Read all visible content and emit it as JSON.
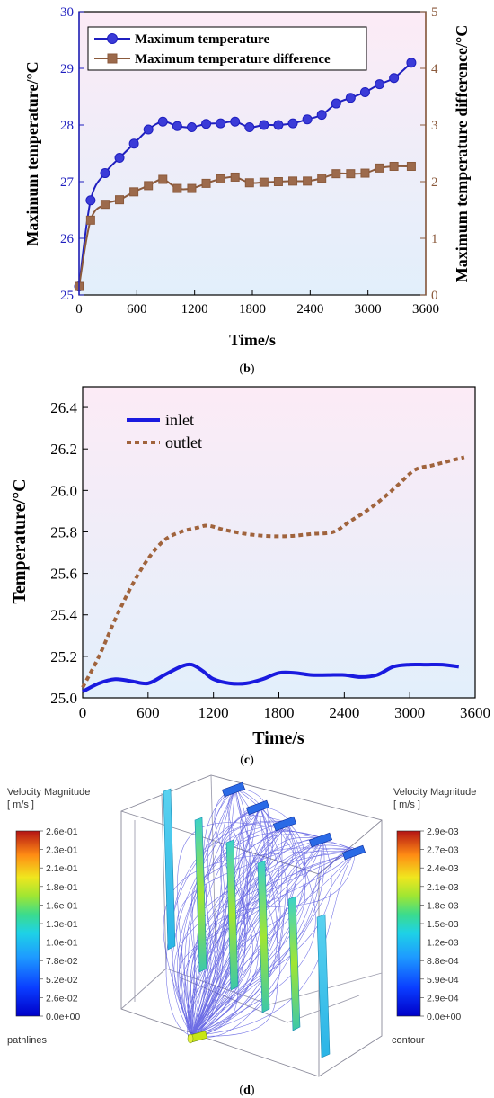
{
  "charts": {
    "b": {
      "caption": "(b)",
      "caption_letter": "b",
      "xlabel": "Time/s",
      "ylabel_left": "Maximum temperature/°C",
      "ylabel_right": "Maximum temperature difference/°C",
      "legend": [
        "Maximum temperature",
        "Maximum temperature difference"
      ],
      "xticks": [
        "0",
        "600",
        "1200",
        "1800",
        "2400",
        "3000",
        "3600"
      ],
      "yticks_left": [
        "25",
        "26",
        "27",
        "28",
        "29",
        "30"
      ],
      "yticks_right": [
        "0",
        "1",
        "2",
        "3",
        "4",
        "5"
      ]
    },
    "c": {
      "caption": "(c)",
      "caption_letter": "c",
      "xlabel": "Time/s",
      "ylabel": "Temperature/°C",
      "legend": [
        "inlet",
        "outlet"
      ],
      "xticks": [
        "0",
        "600",
        "1200",
        "1800",
        "2400",
        "3000",
        "3600"
      ],
      "yticks": [
        "25.0",
        "25.2",
        "25.4",
        "25.6",
        "25.8",
        "26.0",
        "26.2",
        "26.4"
      ]
    }
  },
  "chart_data": [
    {
      "type": "line",
      "x_range": [
        0,
        3600
      ],
      "y_left_range": [
        25,
        30
      ],
      "y_right_range": [
        0,
        5
      ],
      "series": [
        {
          "name": "Maximum temperature",
          "axis": "left",
          "color": "#1f1fbf",
          "marker": "circle",
          "x": [
            0,
            120,
            270,
            420,
            570,
            720,
            870,
            1020,
            1170,
            1320,
            1470,
            1620,
            1770,
            1920,
            2070,
            2220,
            2370,
            2520,
            2670,
            2820,
            2970,
            3120,
            3270,
            3450
          ],
          "y": [
            25.15,
            26.67,
            27.15,
            27.42,
            27.67,
            27.92,
            28.06,
            27.98,
            27.96,
            28.02,
            28.03,
            28.06,
            27.96,
            28.0,
            28.0,
            28.03,
            28.1,
            28.18,
            28.38,
            28.48,
            28.58,
            28.72,
            28.83,
            29.1
          ]
        },
        {
          "name": "Maximum temperature difference",
          "axis": "right",
          "color": "#8b5a3c",
          "marker": "square",
          "x": [
            0,
            120,
            270,
            420,
            570,
            720,
            870,
            1020,
            1170,
            1320,
            1470,
            1620,
            1770,
            1920,
            2070,
            2220,
            2370,
            2520,
            2670,
            2820,
            2970,
            3120,
            3270,
            3450
          ],
          "y": [
            0.15,
            1.32,
            1.6,
            1.68,
            1.82,
            1.93,
            2.04,
            1.88,
            1.88,
            1.97,
            2.05,
            2.08,
            1.98,
            1.99,
            2.0,
            2.01,
            2.01,
            2.06,
            2.14,
            2.14,
            2.15,
            2.24,
            2.27,
            2.27
          ]
        }
      ]
    },
    {
      "type": "line",
      "x_range": [
        0,
        3600
      ],
      "y_range": [
        25.0,
        26.5
      ],
      "series": [
        {
          "name": "inlet",
          "color": "#1a1adf",
          "style": "solid",
          "x": [
            0,
            150,
            300,
            450,
            600,
            750,
            900,
            1000,
            1100,
            1200,
            1350,
            1500,
            1650,
            1800,
            1950,
            2100,
            2250,
            2400,
            2550,
            2700,
            2850,
            3000,
            3150,
            3300,
            3450
          ],
          "y": [
            25.03,
            25.07,
            25.09,
            25.08,
            25.07,
            25.11,
            25.15,
            25.16,
            25.13,
            25.09,
            25.07,
            25.07,
            25.09,
            25.12,
            25.12,
            25.11,
            25.11,
            25.11,
            25.1,
            25.11,
            25.15,
            25.16,
            25.16,
            25.16,
            25.15
          ]
        },
        {
          "name": "outlet",
          "color": "#a0633c",
          "style": "dotted",
          "x": [
            0,
            150,
            300,
            450,
            600,
            750,
            900,
            1050,
            1150,
            1300,
            1500,
            1700,
            1900,
            2100,
            2300,
            2450,
            2600,
            2750,
            2900,
            3050,
            3200,
            3350,
            3500
          ],
          "y": [
            25.05,
            25.2,
            25.38,
            25.54,
            25.67,
            25.76,
            25.8,
            25.82,
            25.83,
            25.81,
            25.79,
            25.78,
            25.78,
            25.79,
            25.8,
            25.85,
            25.9,
            25.96,
            26.03,
            26.1,
            26.12,
            26.14,
            26.16
          ]
        }
      ]
    }
  ],
  "panel_d": {
    "caption": "(d)",
    "caption_letter": "d",
    "left_legend": {
      "title_line1": "Velocity Magnitude",
      "title_line2": "[ m/s ]",
      "ticks": [
        "2.6e-01",
        "2.3e-01",
        "2.1e-01",
        "1.8e-01",
        "1.6e-01",
        "1.3e-01",
        "1.0e-01",
        "7.8e-02",
        "5.2e-02",
        "2.6e-02",
        "0.0e+00"
      ],
      "footer": "pathlines"
    },
    "right_legend": {
      "title_line1": "Velocity Magnitude",
      "title_line2": "[ m/s ]",
      "ticks": [
        "2.9e-03",
        "2.7e-03",
        "2.4e-03",
        "2.1e-03",
        "1.8e-03",
        "1.5e-03",
        "1.2e-03",
        "8.8e-04",
        "5.9e-04",
        "2.9e-04",
        "0.0e+00"
      ],
      "footer": "contour"
    }
  },
  "colors": {
    "plot_bg_top": "#fce9f5",
    "plot_bg_bottom": "#e3f0fb",
    "left_axis": "#1f1fbf",
    "right_axis": "#8b5a3c"
  }
}
